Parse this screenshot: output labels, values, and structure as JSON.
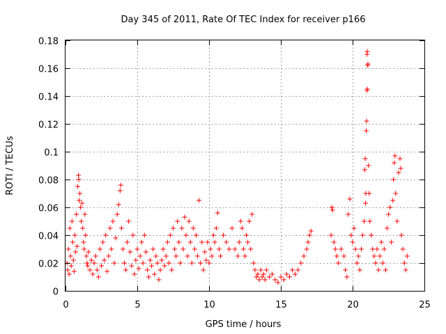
{
  "chart_data": {
    "type": "scatter",
    "title": "Day 345 of 2011, Rate Of TEC Index for receiver p166",
    "xlabel": "GPS time / hours",
    "ylabel": "ROTI / TECUs",
    "xlim": [
      0,
      25
    ],
    "ylim": [
      0,
      0.18
    ],
    "xticks": [
      0,
      5,
      10,
      15,
      20,
      25
    ],
    "yticks": [
      0,
      0.02,
      0.04,
      0.06,
      0.08,
      0.1,
      0.12,
      0.14,
      0.16,
      0.18
    ],
    "xtick_labels": [
      "0",
      "5",
      "10",
      "15",
      "20",
      "25"
    ],
    "ytick_labels": [
      "0",
      "0.02",
      "0.04",
      "0.06",
      "0.08",
      "0.1",
      "0.12",
      "0.14",
      "0.16",
      "0.18"
    ],
    "grid": true,
    "marker": "plus",
    "color": "#ff0000",
    "series": [
      {
        "points": [
          [
            0.1,
            0.02
          ],
          [
            0.15,
            0.015
          ],
          [
            0.2,
            0.03
          ],
          [
            0.25,
            0.012
          ],
          [
            0.3,
            0.045
          ],
          [
            0.35,
            0.025
          ],
          [
            0.4,
            0.018
          ],
          [
            0.45,
            0.05
          ],
          [
            0.5,
            0.035
          ],
          [
            0.55,
            0.022
          ],
          [
            0.6,
            0.014
          ],
          [
            0.65,
            0.04
          ],
          [
            0.7,
            0.028
          ],
          [
            0.75,
            0.055
          ],
          [
            0.8,
            0.032
          ],
          [
            0.85,
            0.075
          ],
          [
            0.9,
            0.083
          ],
          [
            0.92,
            0.08
          ],
          [
            0.95,
            0.065
          ],
          [
            1.0,
            0.07
          ],
          [
            1.05,
            0.06
          ],
          [
            1.1,
            0.05
          ],
          [
            1.15,
            0.063
          ],
          [
            1.2,
            0.045
          ],
          [
            1.25,
            0.035
          ],
          [
            1.3,
            0.03
          ],
          [
            1.35,
            0.055
          ],
          [
            1.4,
            0.04
          ],
          [
            1.45,
            0.025
          ],
          [
            1.5,
            0.02
          ],
          [
            1.55,
            0.018
          ],
          [
            1.6,
            0.028
          ],
          [
            1.7,
            0.015
          ],
          [
            1.8,
            0.022
          ],
          [
            1.9,
            0.012
          ],
          [
            2.0,
            0.02
          ],
          [
            2.1,
            0.025
          ],
          [
            2.2,
            0.015
          ],
          [
            2.3,
            0.01
          ],
          [
            2.4,
            0.03
          ],
          [
            2.5,
            0.018
          ],
          [
            2.6,
            0.035
          ],
          [
            2.7,
            0.022
          ],
          [
            2.8,
            0.04
          ],
          [
            2.9,
            0.014
          ],
          [
            3.0,
            0.025
          ],
          [
            3.1,
            0.045
          ],
          [
            3.2,
            0.03
          ],
          [
            3.3,
            0.05
          ],
          [
            3.4,
            0.02
          ],
          [
            3.5,
            0.038
          ],
          [
            3.6,
            0.055
          ],
          [
            3.7,
            0.062
          ],
          [
            3.8,
            0.072
          ],
          [
            3.85,
            0.076
          ],
          [
            3.9,
            0.045
          ],
          [
            4.0,
            0.03
          ],
          [
            4.1,
            0.02
          ],
          [
            4.2,
            0.015
          ],
          [
            4.3,
            0.035
          ],
          [
            4.4,
            0.05
          ],
          [
            4.5,
            0.028
          ],
          [
            4.6,
            0.018
          ],
          [
            4.7,
            0.04
          ],
          [
            4.8,
            0.012
          ],
          [
            4.9,
            0.022
          ],
          [
            5.0,
            0.03
          ],
          [
            5.1,
            0.016
          ],
          [
            5.2,
            0.025
          ],
          [
            5.3,
            0.035
          ],
          [
            5.4,
            0.02
          ],
          [
            5.5,
            0.04
          ],
          [
            5.6,
            0.028
          ],
          [
            5.7,
            0.015
          ],
          [
            5.8,
            0.01
          ],
          [
            5.9,
            0.022
          ],
          [
            6.0,
            0.018
          ],
          [
            6.1,
            0.03
          ],
          [
            6.2,
            0.012
          ],
          [
            6.3,
            0.025
          ],
          [
            6.4,
            0.02
          ],
          [
            6.5,
            0.008
          ],
          [
            6.6,
            0.015
          ],
          [
            6.7,
            0.022
          ],
          [
            6.8,
            0.03
          ],
          [
            6.9,
            0.018
          ],
          [
            7.0,
            0.025
          ],
          [
            7.1,
            0.035
          ],
          [
            7.2,
            0.02
          ],
          [
            7.3,
            0.04
          ],
          [
            7.4,
            0.015
          ],
          [
            7.5,
            0.045
          ],
          [
            7.6,
            0.03
          ],
          [
            7.7,
            0.025
          ],
          [
            7.8,
            0.05
          ],
          [
            7.9,
            0.035
          ],
          [
            8.0,
            0.02
          ],
          [
            8.1,
            0.045
          ],
          [
            8.2,
            0.03
          ],
          [
            8.3,
            0.053
          ],
          [
            8.4,
            0.04
          ],
          [
            8.5,
            0.025
          ],
          [
            8.6,
            0.05
          ],
          [
            8.7,
            0.035
          ],
          [
            8.8,
            0.02
          ],
          [
            8.9,
            0.045
          ],
          [
            9.0,
            0.03
          ],
          [
            9.1,
            0.04
          ],
          [
            9.2,
            0.025
          ],
          [
            9.3,
            0.065
          ],
          [
            9.4,
            0.02
          ],
          [
            9.5,
            0.035
          ],
          [
            9.6,
            0.015
          ],
          [
            9.7,
            0.028
          ],
          [
            9.8,
            0.022
          ],
          [
            9.9,
            0.035
          ],
          [
            10.0,
            0.02
          ],
          [
            10.1,
            0.03
          ],
          [
            10.2,
            0.025
          ],
          [
            10.3,
            0.04
          ],
          [
            10.4,
            0.035
          ],
          [
            10.5,
            0.045
          ],
          [
            10.6,
            0.056
          ],
          [
            10.7,
            0.03
          ],
          [
            10.8,
            0.025
          ],
          [
            11.0,
            0.04
          ],
          [
            11.2,
            0.035
          ],
          [
            11.4,
            0.03
          ],
          [
            11.6,
            0.045
          ],
          [
            11.8,
            0.03
          ],
          [
            12.0,
            0.025
          ],
          [
            12.1,
            0.035
          ],
          [
            12.2,
            0.05
          ],
          [
            12.3,
            0.045
          ],
          [
            12.4,
            0.03
          ],
          [
            12.5,
            0.025
          ],
          [
            12.6,
            0.04
          ],
          [
            12.7,
            0.035
          ],
          [
            12.8,
            0.05
          ],
          [
            12.9,
            0.03
          ],
          [
            13.0,
            0.055
          ],
          [
            13.1,
            0.02
          ],
          [
            13.2,
            0.015
          ],
          [
            13.3,
            0.01
          ],
          [
            13.4,
            0.012
          ],
          [
            13.5,
            0.008
          ],
          [
            13.6,
            0.015
          ],
          [
            13.7,
            0.01
          ],
          [
            13.8,
            0.012
          ],
          [
            13.9,
            0.008
          ],
          [
            14.0,
            0.015
          ],
          [
            14.2,
            0.01
          ],
          [
            14.4,
            0.012
          ],
          [
            14.6,
            0.008
          ],
          [
            14.8,
            0.006
          ],
          [
            15.0,
            0.01
          ],
          [
            15.2,
            0.008
          ],
          [
            15.4,
            0.012
          ],
          [
            15.6,
            0.01
          ],
          [
            15.8,
            0.015
          ],
          [
            16.0,
            0.012
          ],
          [
            16.2,
            0.015
          ],
          [
            16.4,
            0.02
          ],
          [
            16.6,
            0.025
          ],
          [
            16.8,
            0.03
          ],
          [
            16.9,
            0.035
          ],
          [
            17.0,
            0.04
          ],
          [
            17.1,
            0.043
          ],
          [
            18.5,
            0.04
          ],
          [
            18.55,
            0.06
          ],
          [
            18.6,
            0.058
          ],
          [
            18.7,
            0.035
          ],
          [
            18.8,
            0.03
          ],
          [
            18.9,
            0.025
          ],
          [
            19.0,
            0.02
          ],
          [
            19.2,
            0.03
          ],
          [
            19.4,
            0.025
          ],
          [
            19.5,
            0.015
          ],
          [
            19.6,
            0.01
          ],
          [
            19.7,
            0.055
          ],
          [
            19.8,
            0.066
          ],
          [
            19.9,
            0.04
          ],
          [
            20.0,
            0.035
          ],
          [
            20.1,
            0.045
          ],
          [
            20.2,
            0.03
          ],
          [
            20.3,
            0.02
          ],
          [
            20.4,
            0.025
          ],
          [
            20.5,
            0.015
          ],
          [
            20.6,
            0.03
          ],
          [
            20.7,
            0.04
          ],
          [
            20.8,
            0.05
          ],
          [
            20.85,
            0.087
          ],
          [
            20.88,
            0.095
          ],
          [
            20.9,
            0.063
          ],
          [
            20.92,
            0.07
          ],
          [
            20.95,
            0.115
          ],
          [
            20.97,
            0.122
          ],
          [
            21.0,
            0.144
          ],
          [
            21.02,
            0.145
          ],
          [
            21.05,
            0.162
          ],
          [
            21.07,
            0.163
          ],
          [
            21.0,
            0.17
          ],
          [
            21.02,
            0.172
          ],
          [
            21.1,
            0.09
          ],
          [
            21.15,
            0.07
          ],
          [
            21.2,
            0.05
          ],
          [
            21.3,
            0.04
          ],
          [
            21.4,
            0.03
          ],
          [
            21.5,
            0.025
          ],
          [
            21.6,
            0.02
          ],
          [
            21.7,
            0.03
          ],
          [
            21.8,
            0.015
          ],
          [
            21.9,
            0.025
          ],
          [
            22.0,
            0.035
          ],
          [
            22.1,
            0.02
          ],
          [
            22.2,
            0.03
          ],
          [
            22.3,
            0.015
          ],
          [
            22.4,
            0.045
          ],
          [
            22.5,
            0.055
          ],
          [
            22.6,
            0.06
          ],
          [
            22.7,
            0.035
          ],
          [
            22.8,
            0.065
          ],
          [
            22.85,
            0.08
          ],
          [
            22.9,
            0.092
          ],
          [
            22.95,
            0.097
          ],
          [
            23.0,
            0.07
          ],
          [
            23.1,
            0.05
          ],
          [
            23.2,
            0.085
          ],
          [
            23.3,
            0.095
          ],
          [
            23.35,
            0.088
          ],
          [
            23.4,
            0.04
          ],
          [
            23.5,
            0.03
          ],
          [
            23.6,
            0.02
          ],
          [
            23.7,
            0.015
          ],
          [
            23.8,
            0.025
          ]
        ]
      }
    ]
  }
}
